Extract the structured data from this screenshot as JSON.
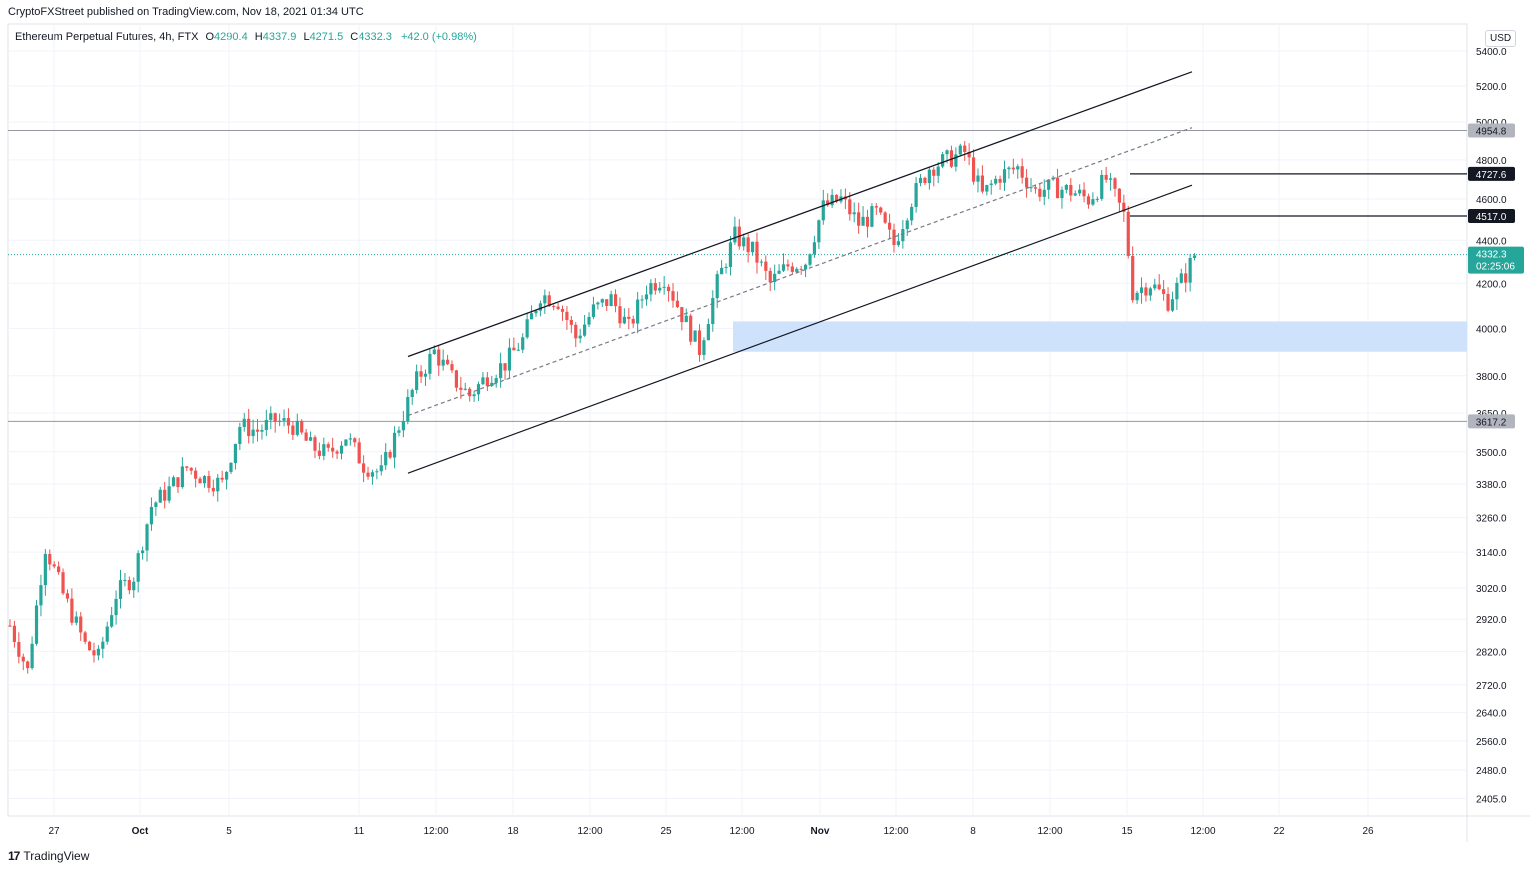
{
  "publisher_text": "CryptoFXStreet published on TradingView.com, Nov 18, 2021 01:34 UTC",
  "legend": {
    "symbol": "Ethereum Perpetual Futures, 4h, FTX",
    "open_label": "O",
    "open": "4290.4",
    "high_label": "H",
    "high": "4337.9",
    "low_label": "L",
    "low": "4271.5",
    "close_label": "C",
    "close": "4332.3",
    "change": "+42.0 (+0.98%)"
  },
  "currency": "USD",
  "footer_brand": "TradingView",
  "colors": {
    "up": "#26a69a",
    "down": "#ef5350",
    "zone": "#cfe2fb",
    "grid": "#f0f3fa",
    "last_price": "#26a69a",
    "level": "#9598a1"
  },
  "chart_data": {
    "type": "candlestick",
    "timeframe": "4h",
    "x_ticks": [
      "27",
      "Oct",
      "5",
      "11",
      "12:00",
      "18",
      "12:00",
      "25",
      "12:00",
      "Nov",
      "12:00",
      "8",
      "12:00",
      "15",
      "12:00",
      "22",
      "26"
    ],
    "y_ticks": [
      "5400.0",
      "5200.0",
      "5000.0",
      "4800.0",
      "4600.0",
      "4400.0",
      "4200.0",
      "4000.0",
      "3800.0",
      "3650.0",
      "3500.0",
      "3380.0",
      "3260.0",
      "3140.0",
      "3020.0",
      "2920.0",
      "2820.0",
      "2720.0",
      "2640.0",
      "2560.0",
      "2480.0",
      "2405.0"
    ],
    "y_scale": "log",
    "ylim": [
      2360,
      5560
    ],
    "last_price": {
      "value": 4332.3,
      "label": "4332.3",
      "countdown": "02:25:06"
    },
    "levels": [
      {
        "value": 4954.8,
        "label": "4954.8",
        "style": "gray"
      },
      {
        "value": 4727.6,
        "label": "4727.6",
        "style": "black"
      },
      {
        "value": 4517.0,
        "label": "4517.0",
        "style": "black"
      },
      {
        "value": 3617.2,
        "label": "3617.2",
        "style": "gray"
      }
    ],
    "zone": {
      "from": 3900,
      "to": 4030
    },
    "channel": {
      "upper": [
        [
          0,
          3880
        ],
        [
          1,
          5280
        ]
      ],
      "middle": [
        [
          0,
          3640
        ],
        [
          1,
          4970
        ]
      ],
      "lower": [
        [
          0,
          3420
        ],
        [
          1,
          4670
        ]
      ]
    },
    "close_path": [
      [
        0,
        2900
      ],
      [
        4,
        2760
      ],
      [
        8,
        3160
      ],
      [
        12,
        3000
      ],
      [
        17,
        2840
      ],
      [
        20,
        2800
      ],
      [
        24,
        3000
      ],
      [
        28,
        3060
      ],
      [
        32,
        3300
      ],
      [
        36,
        3360
      ],
      [
        40,
        3440
      ],
      [
        44,
        3400
      ],
      [
        48,
        3380
      ],
      [
        52,
        3600
      ],
      [
        56,
        3580
      ],
      [
        60,
        3620
      ],
      [
        64,
        3600
      ],
      [
        68,
        3520
      ],
      [
        72,
        3490
      ],
      [
        76,
        3560
      ],
      [
        80,
        3450
      ],
      [
        84,
        3420
      ],
      [
        88,
        3600
      ],
      [
        92,
        3780
      ],
      [
        96,
        3900
      ],
      [
        100,
        3790
      ],
      [
        104,
        3720
      ],
      [
        108,
        3800
      ],
      [
        112,
        3850
      ],
      [
        116,
        3950
      ],
      [
        120,
        4150
      ],
      [
        124,
        4120
      ],
      [
        128,
        3960
      ],
      [
        132,
        4080
      ],
      [
        136,
        4130
      ],
      [
        140,
        4000
      ],
      [
        144,
        4180
      ],
      [
        148,
        4230
      ],
      [
        152,
        4060
      ],
      [
        156,
        3910
      ],
      [
        160,
        4200
      ],
      [
        164,
        4420
      ],
      [
        168,
        4350
      ],
      [
        172,
        4200
      ],
      [
        176,
        4280
      ],
      [
        180,
        4300
      ],
      [
        184,
        4560
      ],
      [
        188,
        4600
      ],
      [
        192,
        4480
      ],
      [
        196,
        4530
      ],
      [
        200,
        4380
      ],
      [
        204,
        4600
      ],
      [
        208,
        4760
      ],
      [
        212,
        4800
      ],
      [
        216,
        4840
      ],
      [
        220,
        4620
      ],
      [
        224,
        4720
      ],
      [
        228,
        4760
      ],
      [
        232,
        4640
      ],
      [
        236,
        4660
      ],
      [
        240,
        4640
      ],
      [
        244,
        4600
      ],
      [
        248,
        4700
      ],
      [
        252,
        4520
      ],
      [
        254,
        4160
      ],
      [
        258,
        4200
      ],
      [
        262,
        4120
      ],
      [
        266,
        4240
      ],
      [
        268,
        4332
      ]
    ],
    "bars_total": 268
  }
}
